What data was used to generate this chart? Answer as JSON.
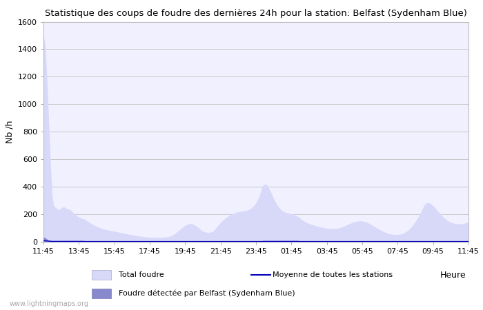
{
  "title": "Statistique des coups de foudre des dernières 24h pour la station: Belfast (Sydenham Blue)",
  "xlabel": "Heure",
  "ylabel": "Nb /h",
  "ylim": [
    0,
    1600
  ],
  "yticks": [
    0,
    200,
    400,
    600,
    800,
    1000,
    1200,
    1400,
    1600
  ],
  "xtick_labels": [
    "11:45",
    "13:45",
    "15:45",
    "17:45",
    "19:45",
    "21:45",
    "23:45",
    "01:45",
    "03:45",
    "05:45",
    "07:45",
    "09:45",
    "11:45"
  ],
  "bg_color": "#ffffff",
  "plot_bg_color": "#f0f0ff",
  "grid_color": "#c8c8c8",
  "fill_total_color": "#d8d8f8",
  "fill_belfast_color": "#8888cc",
  "line_moyenne_color": "#0000bb",
  "watermark": "www.lightningmaps.org",
  "legend_total": "Total foudre",
  "legend_moyenne": "Moyenne de toutes les stations",
  "legend_belfast": "Foudre détectée par Belfast (Sydenham Blue)",
  "total_foudre": [
    1500,
    1430,
    1200,
    900,
    600,
    350,
    260,
    250,
    240,
    235,
    240,
    250,
    255,
    245,
    240,
    235,
    230,
    215,
    205,
    195,
    185,
    178,
    172,
    168,
    165,
    155,
    148,
    140,
    132,
    125,
    118,
    112,
    108,
    102,
    98,
    95,
    90,
    88,
    85,
    82,
    80,
    78,
    75,
    72,
    70,
    68,
    65,
    62,
    60,
    58,
    55,
    52,
    50,
    48,
    46,
    44,
    42,
    40,
    38,
    36,
    35,
    34,
    33,
    32,
    32,
    32,
    32,
    32,
    32,
    32,
    33,
    34,
    35,
    37,
    40,
    45,
    52,
    60,
    70,
    80,
    90,
    100,
    110,
    118,
    125,
    130,
    132,
    130,
    125,
    118,
    110,
    100,
    90,
    80,
    75,
    70,
    68,
    68,
    70,
    75,
    85,
    100,
    115,
    130,
    145,
    155,
    165,
    175,
    185,
    193,
    200,
    205,
    210,
    215,
    218,
    220,
    222,
    224,
    226,
    228,
    232,
    238,
    248,
    260,
    275,
    295,
    320,
    355,
    400,
    415,
    420,
    410,
    390,
    365,
    340,
    310,
    285,
    265,
    250,
    235,
    225,
    218,
    213,
    210,
    208,
    205,
    200,
    195,
    190,
    183,
    175,
    165,
    155,
    148,
    142,
    135,
    130,
    126,
    122,
    118,
    115,
    112,
    108,
    105,
    103,
    100,
    98,
    97,
    96,
    95,
    95,
    96,
    97,
    100,
    103,
    108,
    113,
    118,
    125,
    130,
    135,
    140,
    145,
    148,
    150,
    152,
    152,
    150,
    147,
    143,
    138,
    132,
    125,
    118,
    110,
    102,
    95,
    88,
    82,
    76,
    70,
    65,
    60,
    57,
    55,
    53,
    52,
    52,
    53,
    55,
    58,
    63,
    70,
    78,
    88,
    100,
    115,
    132,
    150,
    170,
    192,
    215,
    240,
    265,
    280,
    285,
    282,
    275,
    265,
    252,
    238,
    222,
    208,
    195,
    182,
    170,
    160,
    152,
    145,
    140,
    136,
    133,
    131,
    130,
    130,
    131,
    133,
    136,
    140,
    145
  ],
  "belfast_foudre": [
    35,
    30,
    20,
    12,
    8,
    5,
    3,
    2,
    2,
    2,
    2,
    3,
    4,
    4,
    3,
    3,
    3,
    3,
    2,
    2,
    2,
    2,
    2,
    2,
    2,
    2,
    2,
    2,
    2,
    2,
    2,
    2,
    2,
    2,
    2,
    2,
    2,
    2,
    2,
    2,
    2,
    2,
    2,
    2,
    2,
    2,
    2,
    2,
    2,
    2,
    2,
    2,
    2,
    2,
    2,
    2,
    2,
    2,
    2,
    2,
    2,
    2,
    2,
    2,
    2,
    2,
    2,
    2,
    2,
    2,
    2,
    2,
    2,
    2,
    2,
    2,
    2,
    2,
    2,
    2,
    2,
    2,
    2,
    2,
    2,
    2,
    2,
    2,
    2,
    2,
    2,
    2,
    2,
    2,
    2,
    2,
    2,
    2,
    2,
    2,
    2,
    2,
    2,
    2,
    2,
    2,
    2,
    2,
    2,
    2,
    2,
    2,
    2,
    2,
    2,
    2,
    2,
    2,
    2,
    2,
    2,
    2,
    2,
    2,
    2,
    2,
    2,
    2,
    2,
    2,
    2,
    2,
    2,
    2,
    2,
    2,
    2,
    2,
    2,
    2,
    2,
    2,
    2,
    2,
    2,
    2,
    2,
    2,
    2,
    2,
    2,
    2,
    2,
    2,
    2,
    2,
    2,
    2,
    2,
    2,
    2,
    2,
    2,
    2,
    2,
    2,
    2,
    2,
    2,
    2,
    2,
    2,
    2,
    2,
    2,
    2,
    2,
    2,
    2,
    2,
    2,
    2,
    2,
    2,
    2,
    2,
    2,
    2,
    2,
    2,
    2,
    2,
    2,
    2,
    2,
    2,
    2,
    2,
    2,
    2,
    2,
    2,
    2,
    2,
    2,
    2,
    2,
    2,
    2,
    2,
    2,
    2,
    2,
    2,
    2,
    2,
    2,
    2,
    2,
    2,
    2,
    2,
    2,
    2,
    2,
    2,
    2,
    2,
    2,
    2,
    2,
    2,
    2,
    2,
    2,
    2,
    2,
    2,
    2,
    2,
    2,
    2,
    2,
    2,
    2,
    2,
    2,
    2,
    2,
    2
  ],
  "moyenne_stations": [
    8,
    7,
    6,
    5,
    4,
    3,
    3,
    3,
    3,
    3,
    3,
    3,
    3,
    3,
    3,
    3,
    3,
    3,
    3,
    3,
    3,
    3,
    3,
    3,
    2,
    2,
    2,
    2,
    2,
    2,
    2,
    2,
    2,
    2,
    2,
    2,
    2,
    2,
    2,
    2,
    2,
    2,
    2,
    2,
    2,
    2,
    2,
    2,
    2,
    2,
    2,
    2,
    2,
    2,
    2,
    2,
    2,
    2,
    2,
    2,
    2,
    2,
    2,
    2,
    2,
    2,
    2,
    2,
    2,
    2,
    2,
    2,
    2,
    2,
    2,
    2,
    2,
    2,
    2,
    2,
    2,
    2,
    2,
    2,
    2,
    2,
    2,
    2,
    2,
    2,
    2,
    2,
    2,
    2,
    2,
    2,
    2,
    2,
    2,
    2,
    2,
    2,
    2,
    2,
    2,
    2,
    2,
    2,
    2,
    2,
    2,
    2,
    2,
    2,
    2,
    2,
    2,
    2,
    2,
    2,
    2,
    2,
    2,
    2,
    2,
    2,
    2,
    2,
    2,
    3,
    3,
    3,
    3,
    3,
    3,
    3,
    3,
    3,
    3,
    3,
    3,
    3,
    3,
    3,
    3,
    3,
    3,
    3,
    3,
    3,
    2,
    2,
    2,
    2,
    2,
    2,
    2,
    2,
    2,
    2,
    2,
    2,
    2,
    2,
    2,
    2,
    2,
    2,
    2,
    2,
    2,
    2,
    2,
    2,
    2,
    2,
    2,
    2,
    2,
    2,
    2,
    2,
    2,
    2,
    2,
    2,
    2,
    2,
    2,
    2,
    2,
    2,
    2,
    2,
    2,
    2,
    2,
    2,
    2,
    2,
    2,
    2,
    2,
    2,
    2,
    2,
    2,
    2,
    2,
    2,
    2,
    2,
    2,
    2,
    2,
    2,
    2,
    2,
    2,
    2,
    2,
    2,
    2,
    2,
    2,
    2,
    2,
    2,
    2,
    2,
    2,
    2,
    2,
    2,
    2,
    2,
    2,
    2,
    2,
    2,
    2,
    2,
    2,
    2,
    2,
    2,
    2,
    2,
    2,
    2
  ]
}
